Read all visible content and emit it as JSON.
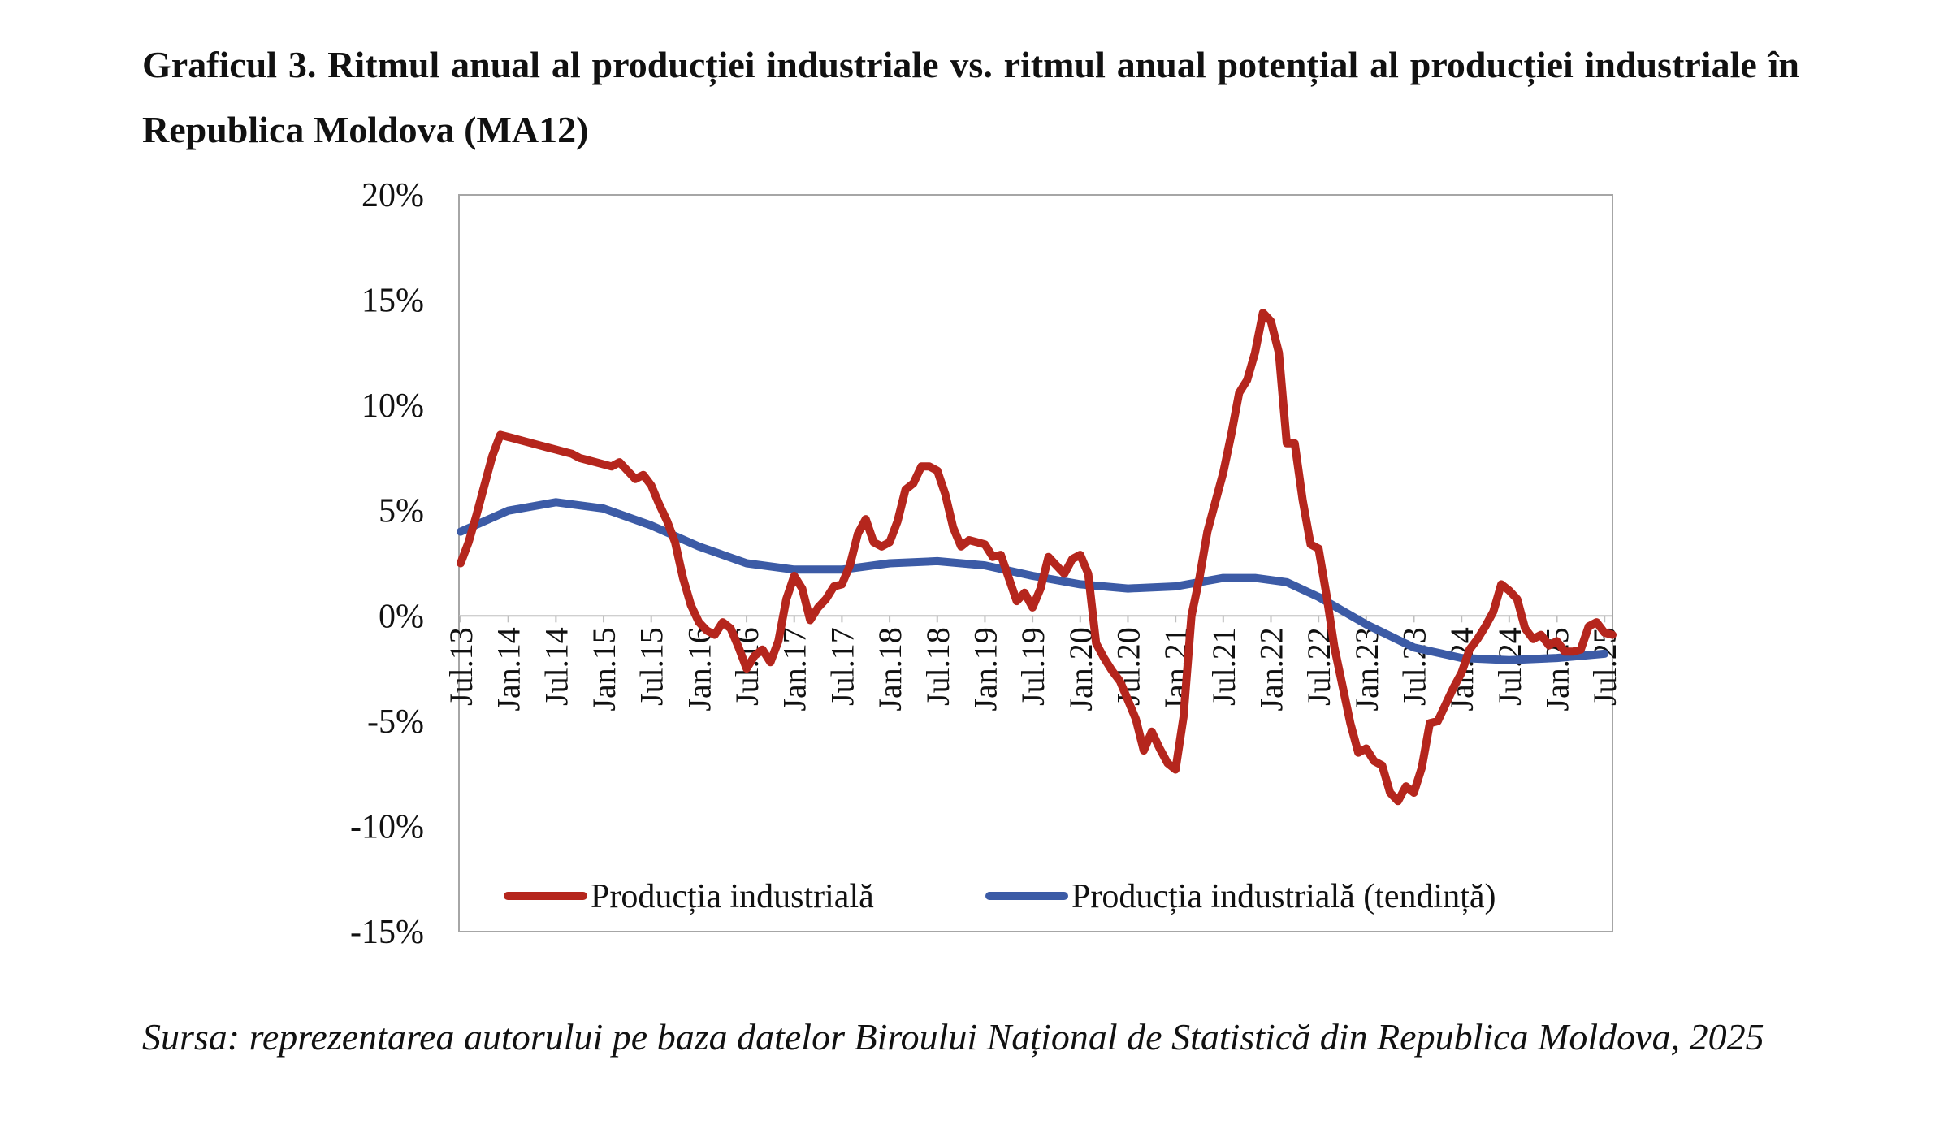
{
  "title": "Graficul 3. Ritmul anual al producției industriale vs. ritmul anual potențial al producției industriale în Republica Moldova (MA12)",
  "source": "Sursa: reprezentarea autorului pe baza datelor Biroului Național de Statistică din Republica Moldova, 2025",
  "chart_data": {
    "type": "line",
    "title": "",
    "xlabel": "",
    "ylabel": "",
    "ylim": [
      -15,
      20
    ],
    "y_ticks": [
      20,
      15,
      10,
      5,
      0,
      -5,
      -10,
      -15
    ],
    "y_tick_labels": [
      "20%",
      "15%",
      "10%",
      "5%",
      "0%",
      "-5%",
      "-10%",
      "-15%"
    ],
    "x_tick_labels": [
      "Jul.13",
      "Jan.14",
      "Jul.14",
      "Jan.15",
      "Jul.15",
      "Jan.16",
      "Jul.16",
      "Jan.17",
      "Jul.17",
      "Jan.18",
      "Jul.18",
      "Jan.19",
      "Jul.19",
      "Jan.20",
      "Jul.20",
      "Jan.21",
      "Jul.21",
      "Jan.22",
      "Jul.22",
      "Jan.23",
      "Jul.23",
      "Jan.24",
      "Jul.24",
      "Jan.25",
      "Jul.25"
    ],
    "x_tick_months": [
      0,
      6,
      12,
      18,
      24,
      30,
      36,
      42,
      48,
      54,
      60,
      66,
      72,
      78,
      84,
      90,
      96,
      102,
      108,
      114,
      120,
      126,
      132,
      138,
      144
    ],
    "legend_position": "bottom",
    "grid": false,
    "series": [
      {
        "name": "Producția industrială",
        "color": "#B5261D",
        "x": [
          0,
          1,
          2,
          3,
          4,
          5,
          6,
          7,
          8,
          9,
          10,
          11,
          12,
          13,
          14,
          15,
          16,
          17,
          18,
          19,
          20,
          21,
          22,
          23,
          24,
          25,
          26,
          27,
          28,
          29,
          30,
          31,
          32,
          33,
          34,
          35,
          36,
          37,
          38,
          39,
          40,
          41,
          42,
          43,
          44,
          45,
          46,
          47,
          48,
          49,
          50,
          51,
          52,
          53,
          54,
          55,
          56,
          57,
          58,
          59,
          60,
          61,
          62,
          63,
          64,
          65,
          66,
          67,
          68,
          69,
          70,
          71,
          72,
          73,
          74,
          75,
          76,
          77,
          78,
          79,
          80,
          81,
          82,
          83,
          84,
          85,
          86,
          87,
          88,
          89,
          90,
          91,
          92,
          93,
          94,
          95,
          96,
          97,
          98,
          99,
          100,
          101,
          102,
          103,
          104,
          105,
          106,
          107,
          108,
          109,
          110,
          111,
          112,
          113,
          114,
          115,
          116,
          117,
          118,
          119,
          120,
          121,
          122,
          123,
          124,
          125,
          126,
          127,
          128,
          129,
          130,
          131,
          132,
          133,
          134,
          135,
          136,
          137,
          138,
          139,
          140,
          141,
          142,
          143,
          144,
          145
        ],
        "values": [
          2.5,
          3.5,
          4.8,
          6.2,
          7.6,
          8.6,
          8.5,
          8.4,
          8.3,
          8.2,
          8.1,
          8.0,
          7.9,
          7.8,
          7.7,
          7.5,
          7.4,
          7.3,
          7.2,
          7.1,
          7.3,
          6.9,
          6.5,
          6.7,
          6.2,
          5.3,
          4.5,
          3.5,
          1.8,
          0.5,
          -0.3,
          -0.7,
          -0.9,
          -0.3,
          -0.6,
          -1.5,
          -2.5,
          -1.9,
          -1.6,
          -2.2,
          -1.2,
          0.8,
          1.9,
          1.3,
          -0.2,
          0.4,
          0.8,
          1.4,
          1.5,
          2.4,
          3.9,
          4.6,
          3.5,
          3.3,
          3.5,
          4.5,
          6.0,
          6.3,
          7.1,
          7.1,
          6.9,
          5.8,
          4.2,
          3.3,
          3.6,
          3.5,
          3.4,
          2.8,
          2.9,
          1.8,
          0.7,
          1.1,
          0.4,
          1.3,
          2.8,
          2.4,
          2.0,
          2.7,
          2.9,
          2.0,
          -1.3,
          -2.0,
          -2.6,
          -3.1,
          -4.0,
          -4.9,
          -6.4,
          -5.5,
          -6.3,
          -7.0,
          -7.3,
          -4.8,
          0.0,
          1.8,
          4.0,
          5.4,
          6.8,
          8.6,
          10.6,
          11.2,
          12.5,
          14.4,
          14.0,
          12.5,
          8.2,
          8.2,
          5.5,
          3.4,
          3.2,
          1.0,
          -1.5,
          -3.3,
          -5.1,
          -6.5,
          -6.3,
          -6.9,
          -7.1,
          -8.4,
          -8.8,
          -8.1,
          -8.4,
          -7.2,
          -5.1,
          -5.0,
          -4.2,
          -3.4,
          -2.7,
          -1.6,
          -1.1,
          -0.5,
          0.2,
          1.5,
          1.2,
          0.8,
          -0.6,
          -1.1,
          -0.9,
          -1.4,
          -1.2,
          -1.7,
          -1.7,
          -1.6,
          -0.5,
          -0.3,
          -0.8,
          -0.9
        ]
      },
      {
        "name": "Producția industrială (tendință)",
        "color": "#3C5BA6",
        "x": [
          0,
          6,
          12,
          18,
          24,
          30,
          36,
          42,
          48,
          54,
          60,
          66,
          72,
          78,
          84,
          90,
          96,
          100,
          104,
          108,
          114,
          120,
          126,
          132,
          138,
          144
        ],
        "values": [
          4.0,
          5.0,
          5.4,
          5.1,
          4.3,
          3.3,
          2.5,
          2.2,
          2.2,
          2.5,
          2.6,
          2.4,
          1.9,
          1.5,
          1.3,
          1.4,
          1.8,
          1.8,
          1.6,
          0.9,
          -0.4,
          -1.5,
          -2.0,
          -2.1,
          -2.0,
          -1.8
        ]
      }
    ]
  }
}
